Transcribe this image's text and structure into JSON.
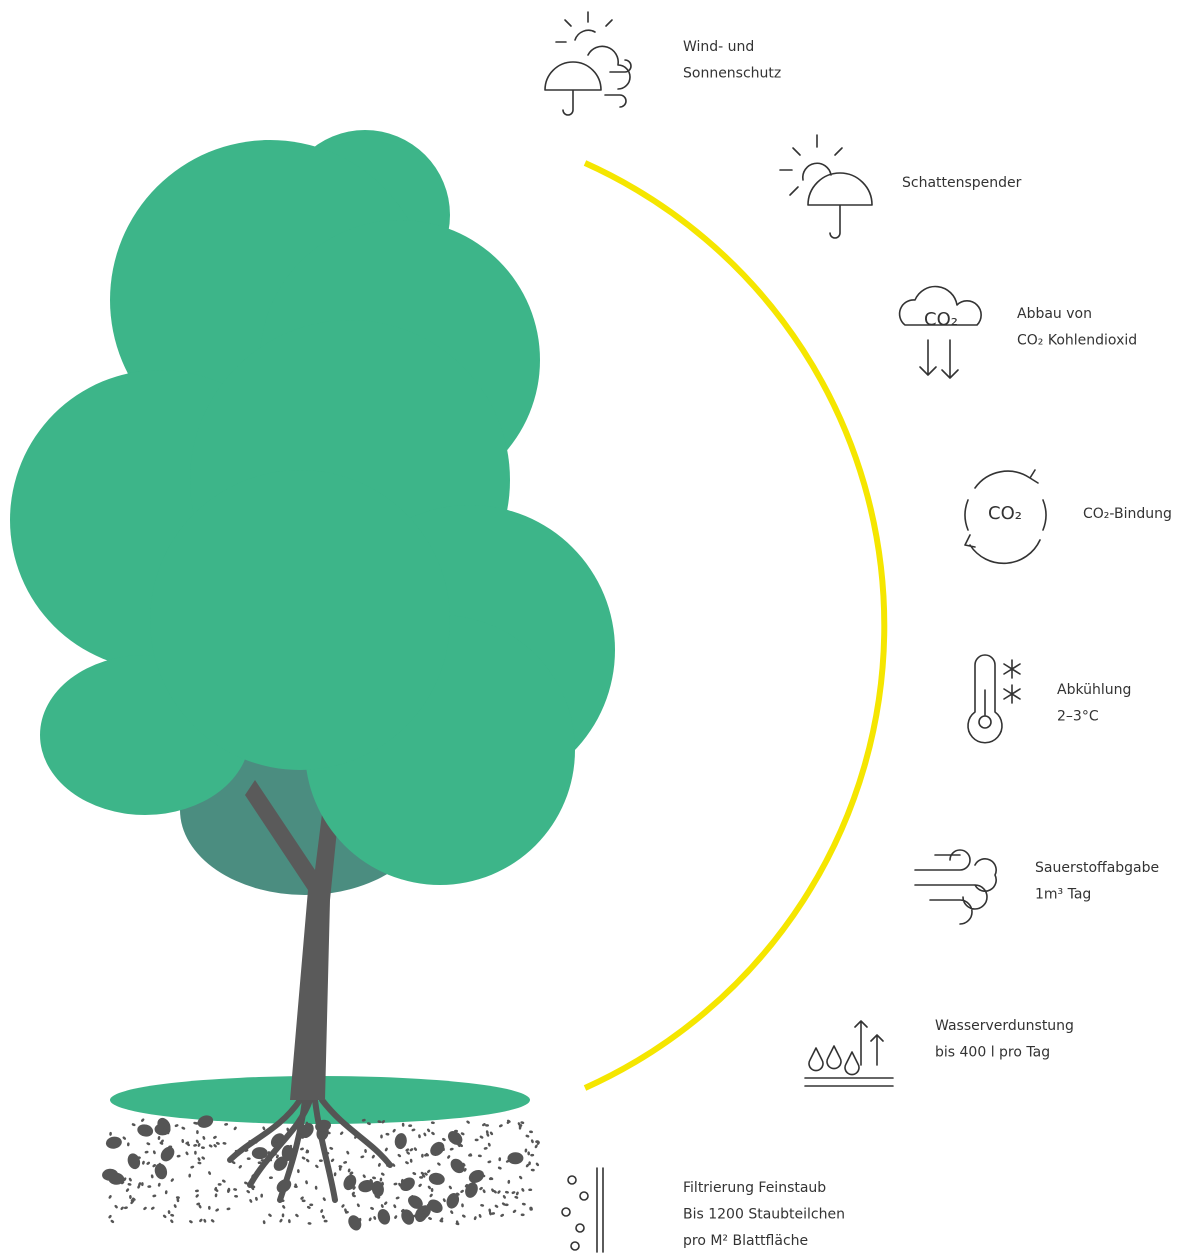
{
  "items": [
    {
      "lines": [
        "Wind- und",
        "Sonnenschutz"
      ]
    },
    {
      "lines": [
        "Schattenspender"
      ]
    },
    {
      "lines": [
        "Abbau von",
        "CO₂ Kohlendioxid"
      ],
      "icon_text": "CO₂"
    },
    {
      "lines": [
        "CO₂-Bindung"
      ],
      "icon_text": "CO₂"
    },
    {
      "lines": [
        "Abkühlung",
        "2–3°C"
      ]
    },
    {
      "lines": [
        "Sauerstoffabgabe",
        "1m³ Tag"
      ]
    },
    {
      "lines": [
        "Wasserverdunstung",
        "bis 400 l pro Tag"
      ]
    },
    {
      "lines": [
        "Filtrierung Feinstaub",
        "Bis 1200 Staubteilchen",
        "pro M² Blattfläche"
      ]
    }
  ]
}
